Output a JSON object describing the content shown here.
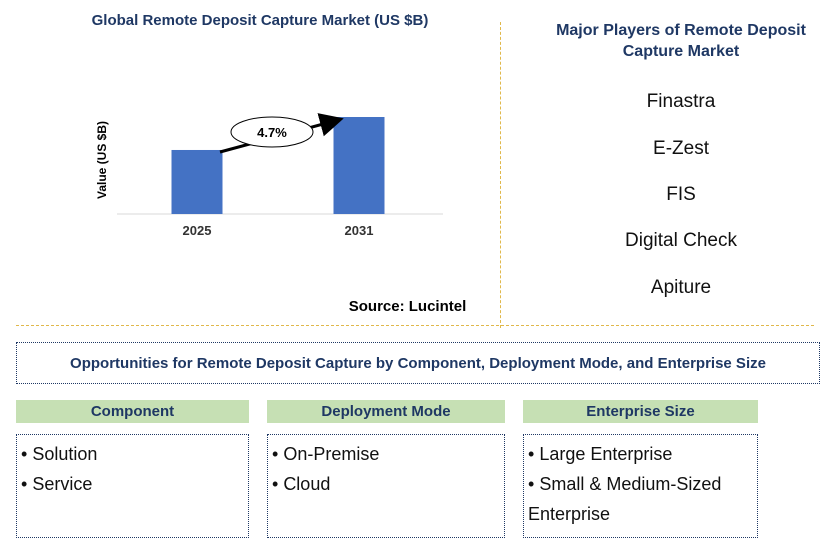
{
  "chart_data": {
    "type": "bar",
    "title": "Global Remote Deposit Capture Market (US $B)",
    "ylabel": "Value (US $B)",
    "categories": [
      "2025",
      "2031"
    ],
    "values": [
      0.66,
      1.0
    ],
    "bar_color": "#4472c4",
    "annotation": "4.7%",
    "source": "Source: Lucintel"
  },
  "players": {
    "title": "Major Players of Remote Deposit Capture Market",
    "items": [
      "Finastra",
      "E-Zest",
      "FIS",
      "Digital Check",
      "Apiture"
    ]
  },
  "opportunities": {
    "title": "Opportunities for Remote Deposit Capture by Component, Deployment Mode, and Enterprise Size",
    "categories": [
      {
        "heading": "Component",
        "items": [
          "Solution",
          "Service"
        ]
      },
      {
        "heading": "Deployment Mode",
        "items": [
          "On-Premise",
          "Cloud"
        ]
      },
      {
        "heading": "Enterprise Size",
        "items": [
          "Large Enterprise",
          "Small & Medium-Sized Enterprise"
        ]
      }
    ]
  },
  "colors": {
    "title": "#1f3864",
    "header_fill": "#c6e0b4",
    "divider": "#e0b84a"
  }
}
